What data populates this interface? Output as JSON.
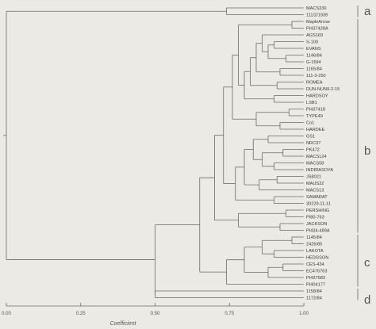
{
  "chart_data": {
    "type": "dendrogram",
    "xlabel": "Coefficient",
    "xlim": [
      0.0,
      1.0
    ],
    "ticks": [
      "0.00",
      "0.25",
      "0.50",
      "0.75",
      "1.00"
    ],
    "leaves": [
      "MACS330",
      "111/2/1939",
      "MapleArrow",
      "PI437428A",
      "AGS169",
      "S-100",
      "EVANS",
      "1146/84",
      "G-1594",
      "1165/84",
      "111-3-250",
      "ROMEA",
      "DUN-NUNII-2-15",
      "HARDSOY",
      "LSB1",
      "PI437418",
      "TYPE49",
      "Co1",
      "HARDEE",
      "GS1",
      "NRC37",
      "PK472",
      "MACS124",
      "MACS58",
      "INDIRASOYA",
      "JS8021",
      "MAUS32",
      "MACS13",
      "SAMARAT",
      "30229-11-11",
      "PERSHING",
      "PI80-763",
      "JACKSON",
      "PI434-489A",
      "1145/84",
      "2426/85",
      "LAKOTA",
      "HEDGSON",
      "CES-434",
      "EC476763",
      "PI437683",
      "PI404177",
      "1158/84",
      "1172/84"
    ],
    "groups": [
      {
        "label": "a",
        "members": [
          "MACS330",
          "111/2/1939"
        ]
      },
      {
        "label": "b",
        "members": [
          "MapleArrow",
          "…",
          "PI434-489A"
        ]
      },
      {
        "label": "c",
        "members": [
          "1145/84",
          "…",
          "PI404177"
        ]
      },
      {
        "label": "d",
        "members": [
          "1158/84",
          "1172/84"
        ]
      }
    ],
    "merges": [
      {
        "a": "MACS330",
        "b": "111/2/1939",
        "height": 0.87
      },
      {
        "a": "MapleArrow",
        "b": "PI437428A",
        "height": 0.96
      },
      {
        "a": "S-100",
        "b": "EVANS",
        "height": 0.9
      },
      {
        "a": "1146/84",
        "b": "G-1594",
        "height": 0.94
      },
      {
        "a": "1165/84",
        "b": "111-3-250",
        "height": 0.92
      },
      {
        "a": "ROMEA",
        "b": "DUN-NUNII-2-15",
        "height": 0.91
      },
      {
        "a": "HARDSOY",
        "b": "LSB1",
        "height": 0.9
      },
      {
        "a": "PI437418",
        "b": "TYPE49",
        "height": 0.95
      },
      {
        "a": "Co1",
        "b": "HARDEE",
        "height": 0.92
      },
      {
        "a": "GS1",
        "b": "NRC37",
        "height": 0.88
      },
      {
        "a": "PK472",
        "b": "MACS124",
        "height": 0.93
      },
      {
        "a": "MACS58",
        "b": "INDIRASOYA",
        "height": 0.9
      },
      {
        "a": "JS8021",
        "b": "MAUS32",
        "height": 0.91
      },
      {
        "a": "SAMARAT",
        "b": "30229-11-11",
        "height": 0.9
      },
      {
        "a": "PERSHING",
        "b": "PI80-763",
        "height": 0.94
      },
      {
        "a": "JACKSON",
        "b": "PI434-489A",
        "height": 0.92
      },
      {
        "a": "1145/84",
        "b": "2426/85",
        "height": 0.96
      },
      {
        "a": "LAKOTA",
        "b": "HEDGSON",
        "height": 0.9
      },
      {
        "a": "CES-434",
        "b": "EC476763",
        "height": 0.93
      },
      {
        "a": "1158/84",
        "b": "1172/84",
        "height": 0.5
      },
      {
        "group": "a",
        "b": "b+c+d",
        "height": 0.0
      }
    ]
  }
}
